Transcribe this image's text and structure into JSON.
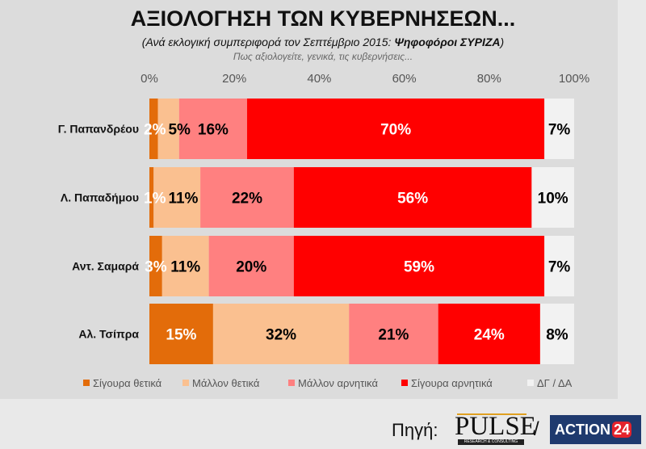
{
  "chart_data": {
    "type": "bar",
    "orientation": "horizontal",
    "stacked": true,
    "title": "ΑΞΙΟΛΟΓΗΣΗ ΤΩΝ ΚΥΒΕΡΝΗΣΕΩΝ...",
    "subtitle_prefix": "(Ανά εκλογική συμπεριφορά τον Σεπτέμβριο 2015: ",
    "subtitle_bold": "Ψηφοφόροι ΣΥΡΙΖΑ",
    "subtitle_suffix": ")",
    "question": "Πως αξιολογείτε, γενικά, τις κυβερνήσεις...",
    "xlim": [
      0,
      100
    ],
    "x_ticks": [
      "0%",
      "20%",
      "40%",
      "60%",
      "80%",
      "100%"
    ],
    "x_axis_position": "top",
    "grid": false,
    "legend_position": "bottom",
    "categories": [
      "Γ. Παπανδρέου",
      "Λ. Παπαδήμου",
      "Αντ. Σαμαρά",
      "Αλ. Τσίπρα"
    ],
    "series": [
      {
        "name": "Σίγουρα θετικά",
        "color": "#e36c0a",
        "label_color": "#ffffff",
        "values": [
          2,
          1,
          3,
          15
        ]
      },
      {
        "name": "Μάλλον θετικά",
        "color": "#fac090",
        "label_color": "#000000",
        "values": [
          5,
          11,
          11,
          32
        ]
      },
      {
        "name": "Μάλλον αρνητικά",
        "color": "#ff8080",
        "label_color": "#000000",
        "values": [
          16,
          22,
          20,
          21
        ]
      },
      {
        "name": "Σίγουρα αρνητικά",
        "color": "#ff0000",
        "label_color": "#ffffff",
        "values": [
          70,
          56,
          59,
          24
        ]
      },
      {
        "name": "ΔΓ / ΔΑ",
        "color": "#f2f2f2",
        "label_color": "#000000",
        "values": [
          7,
          10,
          7,
          8
        ]
      }
    ]
  },
  "footer": {
    "source_label": "Πηγή:",
    "logo1": "PULSE",
    "logo1_sub": "RESEARCH & CONSULTING",
    "separator": "/",
    "logo2": "ACTION",
    "logo2_num": "24"
  }
}
